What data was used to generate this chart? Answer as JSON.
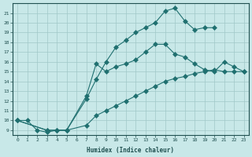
{
  "xlabel": "Humidex (Indice chaleur)",
  "background_color": "#c8e8e8",
  "grid_color": "#a0c8c8",
  "line_color": "#207070",
  "xticks": [
    0,
    1,
    2,
    3,
    4,
    5,
    6,
    7,
    8,
    9,
    10,
    11,
    12,
    13,
    14,
    15,
    16,
    17,
    18,
    19,
    20,
    21,
    22,
    23
  ],
  "yticks": [
    9,
    10,
    11,
    12,
    13,
    14,
    15,
    16,
    17,
    18,
    19,
    20,
    21
  ],
  "line1_x": [
    0,
    1,
    2,
    3,
    4,
    5,
    7,
    8,
    9,
    10,
    11,
    12,
    13,
    14,
    15,
    16,
    17,
    18,
    19,
    20
  ],
  "line1_y": [
    10,
    10,
    9,
    8.8,
    9,
    9,
    12.2,
    14.2,
    16,
    17.5,
    18.2,
    19,
    19.5,
    20,
    21.2,
    21.5,
    20.2,
    19.3,
    19.5,
    19.5
  ],
  "line2_x": [
    0,
    3,
    4,
    5,
    7,
    8,
    9,
    10,
    11,
    12,
    13,
    14,
    15,
    16,
    17,
    18,
    19,
    20,
    21,
    22,
    23
  ],
  "line2_y": [
    10,
    9,
    9,
    9,
    12.5,
    15.8,
    15.0,
    15.5,
    15.8,
    16.2,
    17.0,
    17.8,
    17.8,
    16.8,
    16.5,
    15.8,
    15.2,
    15.0,
    16.0,
    15.5,
    15.0
  ],
  "line3_x": [
    0,
    3,
    4,
    5,
    7,
    8,
    9,
    10,
    11,
    12,
    13,
    14,
    15,
    16,
    17,
    18,
    19,
    20,
    21,
    22,
    23
  ],
  "line3_y": [
    10,
    9,
    9,
    9,
    9.5,
    10.5,
    11.0,
    11.5,
    12.0,
    12.5,
    13.0,
    13.5,
    14.0,
    14.3,
    14.5,
    14.8,
    15.0,
    15.2,
    15.0,
    15.0,
    15.0
  ],
  "marker_size": 3
}
